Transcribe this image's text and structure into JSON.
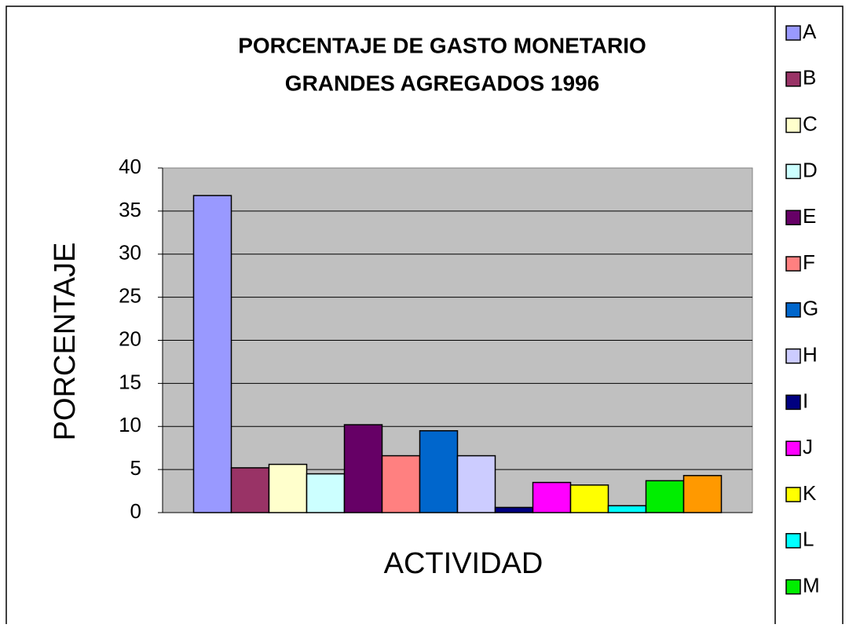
{
  "chart_data": {
    "type": "bar",
    "title": [
      "PORCENTAJE DE GASTO MONETARIO",
      "GRANDES AGREGADOS 1996"
    ],
    "x_label": "ACTIVIDAD",
    "y_label": "PORCENTAJE",
    "ylim": [
      0,
      40
    ],
    "yticks": [
      0,
      5,
      10,
      15,
      20,
      25,
      30,
      35,
      40
    ],
    "grid": true,
    "legend": "right",
    "series": [
      {
        "name": "A",
        "color": "#9999ff",
        "values": [
          36.8
        ]
      },
      {
        "name": "B",
        "color": "#993366",
        "values": [
          5.2
        ]
      },
      {
        "name": "C",
        "color": "#ffffcc",
        "values": [
          5.6
        ]
      },
      {
        "name": "D",
        "color": "#ccffff",
        "values": [
          4.5
        ]
      },
      {
        "name": "E",
        "color": "#660066",
        "values": [
          10.2
        ]
      },
      {
        "name": "F",
        "color": "#ff8080",
        "values": [
          6.6
        ]
      },
      {
        "name": "G",
        "color": "#0066cc",
        "values": [
          9.5
        ]
      },
      {
        "name": "H",
        "color": "#ccccff",
        "values": [
          6.6
        ]
      },
      {
        "name": "I",
        "color": "#000080",
        "values": [
          0.6
        ]
      },
      {
        "name": "J",
        "color": "#ff00ff",
        "values": [
          3.5
        ]
      },
      {
        "name": "K",
        "color": "#ffff00",
        "values": [
          3.2
        ]
      },
      {
        "name": "L",
        "color": "#00ffff",
        "values": [
          0.8
        ]
      },
      {
        "name": "M",
        "color": "#00ee00",
        "values": [
          3.7
        ]
      },
      {
        "name": null,
        "color": "#ff9900",
        "values": [
          4.3
        ]
      }
    ]
  }
}
